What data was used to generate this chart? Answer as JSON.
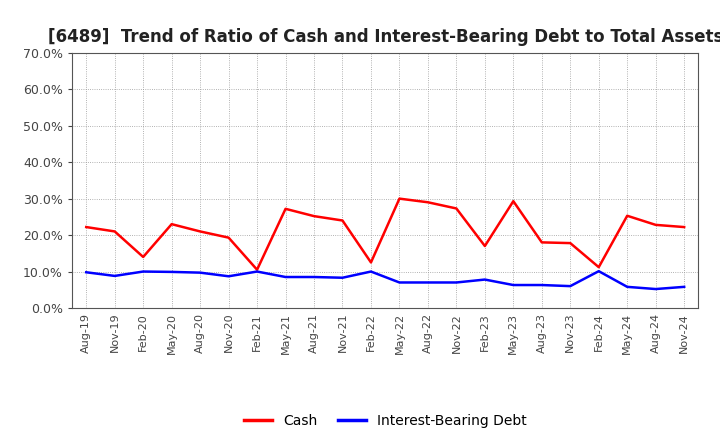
{
  "title": "[6489]  Trend of Ratio of Cash and Interest-Bearing Debt to Total Assets",
  "x_labels": [
    "Aug-19",
    "Nov-19",
    "Feb-20",
    "May-20",
    "Aug-20",
    "Nov-20",
    "Feb-21",
    "May-21",
    "Aug-21",
    "Nov-21",
    "Feb-22",
    "May-22",
    "Aug-22",
    "Nov-22",
    "Feb-23",
    "May-23",
    "Aug-23",
    "Nov-23",
    "Feb-24",
    "May-24",
    "Aug-24",
    "Nov-24"
  ],
  "cash": [
    0.222,
    0.21,
    0.14,
    0.23,
    0.21,
    0.193,
    0.105,
    0.272,
    0.252,
    0.24,
    0.125,
    0.3,
    0.29,
    0.273,
    0.17,
    0.293,
    0.18,
    0.178,
    0.112,
    0.253,
    0.228,
    0.222
  ],
  "debt": [
    0.098,
    0.088,
    0.1,
    0.099,
    0.097,
    0.087,
    0.1,
    0.085,
    0.085,
    0.083,
    0.1,
    0.07,
    0.07,
    0.07,
    0.078,
    0.063,
    0.063,
    0.06,
    0.101,
    0.058,
    0.052,
    0.058
  ],
  "cash_color": "#ff0000",
  "debt_color": "#0000ff",
  "background_color": "#ffffff",
  "grid_color": "#999999",
  "ylim": [
    0.0,
    0.7
  ],
  "yticks": [
    0.0,
    0.1,
    0.2,
    0.3,
    0.4,
    0.5,
    0.6,
    0.7
  ],
  "title_fontsize": 12,
  "legend_labels": [
    "Cash",
    "Interest-Bearing Debt"
  ],
  "line_width": 1.8
}
